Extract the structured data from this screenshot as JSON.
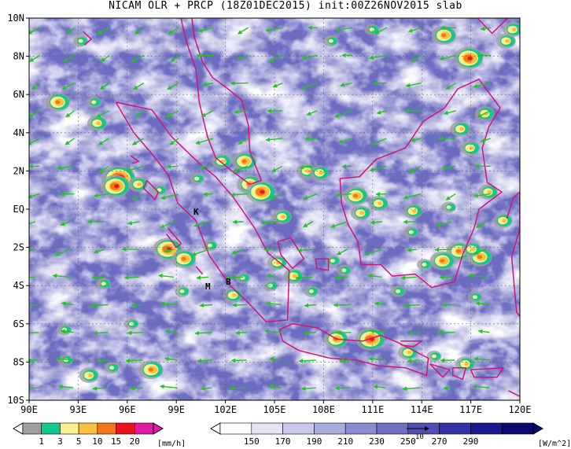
{
  "title": "NICAM OLR + PRCP (18Z01DEC2015) init:00Z26NOV2015 slab",
  "map": {
    "lat_labels": [
      "10N",
      "8N",
      "6N",
      "4N",
      "2N",
      "EQ",
      "2S",
      "4S",
      "6S",
      "8S",
      "10S"
    ],
    "lon_labels": [
      "90E",
      "93E",
      "96E",
      "99E",
      "102E",
      "105E",
      "108E",
      "111E",
      "114E",
      "117E",
      "120E"
    ],
    "lat_range": [
      -10,
      10
    ],
    "lon_range": [
      90,
      120
    ],
    "gridlines": "dashed",
    "city_markers": [
      "K",
      "M",
      "B"
    ],
    "coastline_color": "#d4147a",
    "wind_vector_color": "#22c322"
  },
  "precip_legend": {
    "ticks": [
      "1",
      "3",
      "5",
      "10",
      "15",
      "20"
    ],
    "unit": "[mm/h]",
    "colors": [
      "#a0a0a0",
      "#12c88c",
      "#f8f090",
      "#f8c040",
      "#f07818",
      "#e8141e",
      "#e01ca0"
    ]
  },
  "olr_legend": {
    "ticks": [
      "150",
      "170",
      "190",
      "210",
      "230",
      "250",
      "270",
      "290"
    ],
    "unit": "[W/m^2]",
    "reference_vector_label": "10",
    "colors": [
      "#ffffff",
      "#e4e4f4",
      "#c8c8ea",
      "#aaaadc",
      "#8c8cd0",
      "#7070c2",
      "#5050b4",
      "#3232a4",
      "#1a1a8e",
      "#0a0a70"
    ]
  }
}
